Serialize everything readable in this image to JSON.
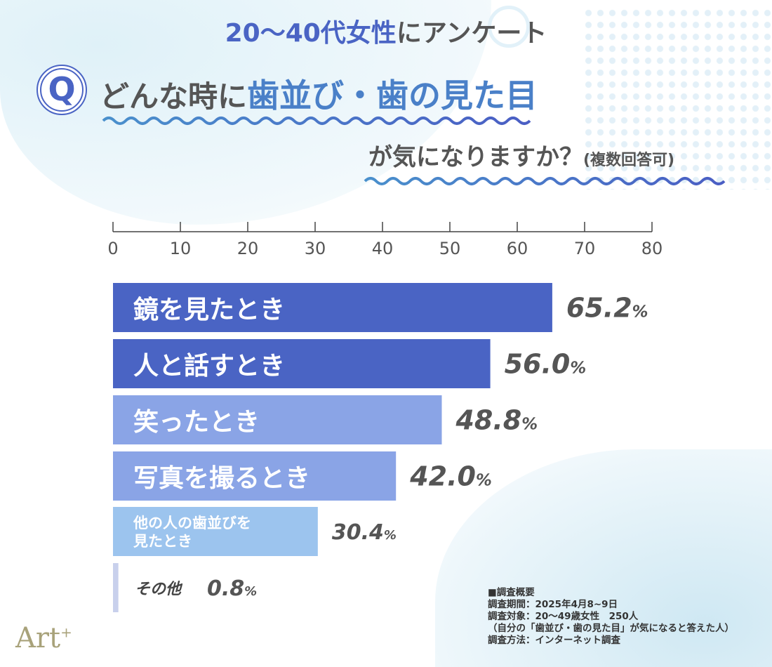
{
  "header": {
    "title_highlight": "20〜40代女性",
    "title_rest": "にアンケート",
    "q_icon": "Q",
    "question_part1": "どんな時に",
    "question_highlight": "歯並び・歯の見た目",
    "question_part2": "が気になりますか？",
    "question_note": "(複数回答可)"
  },
  "chart_data": {
    "type": "bar",
    "orientation": "horizontal",
    "xlim": [
      0,
      80
    ],
    "ticks": [
      "0",
      "10",
      "20",
      "30",
      "40",
      "50",
      "60",
      "70",
      "80"
    ],
    "categories": [
      "鏡を見たとき",
      "人と話すとき",
      "笑ったとき",
      "写真を撮るとき",
      "他の人の歯並びを見たとき",
      "その他"
    ],
    "category_lines": [
      [
        "鏡を見たとき"
      ],
      [
        "人と話すとき"
      ],
      [
        "笑ったとき"
      ],
      [
        "写真を撮るとき"
      ],
      [
        "他の人の歯並びを",
        "見たとき"
      ],
      [
        "その他"
      ]
    ],
    "values": [
      65.2,
      56.0,
      48.8,
      42.0,
      30.4,
      0.8
    ],
    "labels": [
      "65.2",
      "56.0",
      "48.8",
      "42.0",
      "30.4",
      "0.8"
    ],
    "unit": "%",
    "colors": [
      "#4a64c4",
      "#4a64c4",
      "#8aa4e6",
      "#8aa4e6",
      "#9cc4ee",
      "#c8d0ec"
    ]
  },
  "survey": {
    "heading": "■調査概要",
    "period": "調査期間：2025年4月8~9日",
    "target": "調査対象：20〜49歳女性　250人",
    "target_note": "（自分の「歯並び・歯の見た目」が気になると答えた人）",
    "method": "調査方法：インターネット調査"
  },
  "logo": {
    "text": "Art",
    "plus": "+"
  }
}
